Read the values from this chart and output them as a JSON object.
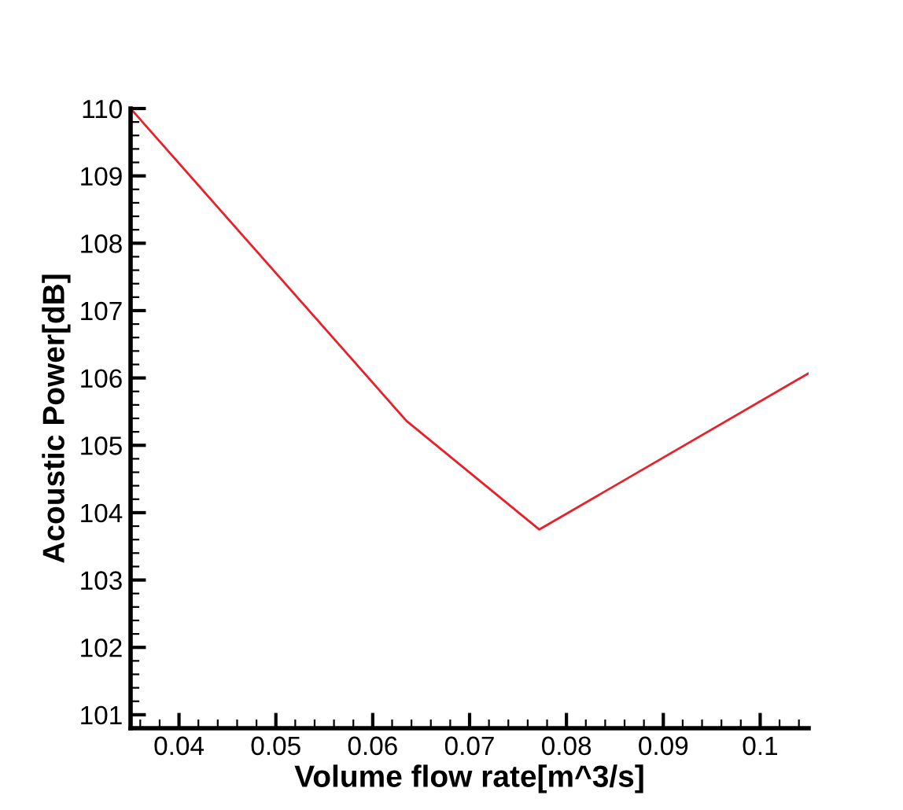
{
  "chart_data": {
    "type": "line",
    "xlabel": "Volume flow rate[m^3/s]",
    "ylabel": "Acoustic Power[dB]",
    "x": [
      0.035,
      0.0635,
      0.0772,
      0.105
    ],
    "series": [
      {
        "color": "#e8202a",
        "values": [
          110.0,
          105.36,
          103.75,
          106.07
        ]
      }
    ],
    "xlim": [
      0.035,
      0.105
    ],
    "xticks": [
      {
        "value": 0.04,
        "label": "0.04"
      },
      {
        "value": 0.05,
        "label": "0.05"
      },
      {
        "value": 0.06,
        "label": "0.06"
      },
      {
        "value": 0.07,
        "label": "0.07"
      },
      {
        "value": 0.08,
        "label": "0.08"
      },
      {
        "value": 0.09,
        "label": "0.09"
      },
      {
        "value": 0.1,
        "label": "0.1"
      }
    ],
    "ylim": [
      100.8,
      110.0
    ],
    "yticks": [
      101,
      102,
      103,
      104,
      105,
      106,
      107,
      108,
      109,
      110
    ],
    "grid": false,
    "marker": "none",
    "line_style": "solid"
  }
}
